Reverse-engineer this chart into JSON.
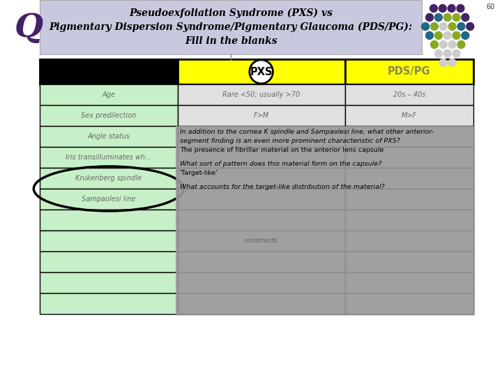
{
  "title_text": "Pseudoexfoliation Syndrome (PXS) vs\nPigmentary Dispersion Syndrome/Pigmentary Glaucoma (PDS/PG):\nFill in the blanks",
  "slide_number": "60",
  "q_label": "Q",
  "rows": [
    {
      "col1": "Age",
      "col2": "Rare <50; usually >70",
      "col3": "20s – 40s"
    },
    {
      "col1": "Sex predilection",
      "col2": "F>M",
      "col3": "M>F"
    },
    {
      "col1": "Angle status",
      "col2": "",
      "col3": ""
    },
    {
      "col1": "Iris transilluminates wh...",
      "col2": "",
      "col3": ""
    },
    {
      "col1": "Krukenberg spindle",
      "col2": "",
      "col3": ""
    },
    {
      "col1": "Sampaolesi line",
      "col2": "",
      "col3": ""
    },
    {
      "col1": "",
      "col2": "",
      "col3": ""
    },
    {
      "col1": "",
      "col2": "constructs",
      "col3": ""
    },
    {
      "col1": "",
      "col2": "",
      "col3": ""
    },
    {
      "col1": "",
      "col2": "",
      "col3": ""
    },
    {
      "col1": "",
      "col2": "",
      "col3": ""
    }
  ],
  "title_bg": "#c8c8df",
  "header_bg": "#ffff00",
  "row_left_bg": "#c8f0c8",
  "black_header_bg": "#000000",
  "overlay_bg": "#999999",
  "overlay_text_lines": [
    {
      "text": "In addition to the cornea K spindle and Sampaolesi line, what other anterior-",
      "style": "italic"
    },
    {
      "text": "segment finding is an even more prominent characteristic of PXS?",
      "style": "italic"
    },
    {
      "text": "The presence of fibrillar material on the anterior lens capsule",
      "style": "normal"
    },
    {
      "text": "",
      "style": ""
    },
    {
      "text": "What sort of pattern does this material form on the capsule?",
      "style": "italic"
    },
    {
      "text": "‘Target-like’",
      "style": "normal"
    },
    {
      "text": "",
      "style": ""
    },
    {
      "text": "What accounts for the target-like distribution of the material?",
      "style": "italic"
    }
  ],
  "oval_rows": [
    4,
    5
  ],
  "dot_grid": [
    [
      "#442266",
      "#442266",
      "#442266",
      "#442266"
    ],
    [
      "#442266",
      "#226688",
      "#88aa22",
      "#88aa22",
      "#442266"
    ],
    [
      "#226688",
      "#88aa22",
      "#cccccc",
      "#88aa22",
      "#226688",
      "#442266"
    ],
    [
      "#226688",
      "#88aa22",
      "#cccccc",
      "#88aa22",
      "#226688"
    ],
    [
      "#88aa22",
      "#cccccc",
      "#cccccc",
      "#88aa22"
    ],
    [
      "#cccccc",
      "#cccccc",
      "#cccccc"
    ],
    [
      "#cccccc",
      "#cccccc"
    ]
  ]
}
